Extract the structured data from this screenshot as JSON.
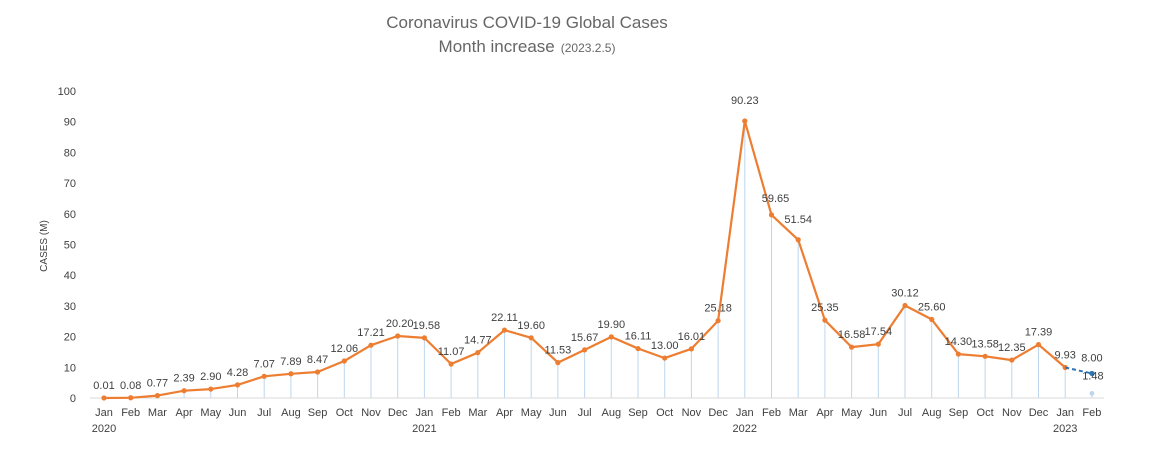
{
  "chart_data": {
    "type": "line",
    "title": "Coronavirus COVID-19 Global Cases",
    "subtitle": "Month increase",
    "subtitle_note": "(2023.2.5)",
    "ylabel": "CASES  (M)",
    "xlabel": "",
    "ylim": [
      0,
      100
    ],
    "yticks": [
      "0",
      "10",
      "20",
      "30",
      "40",
      "50",
      "60",
      "70",
      "80",
      "90",
      "100"
    ],
    "grid": false,
    "drop_lines": true,
    "colors": {
      "line": "#ED7D31",
      "projection": "#2E75B6",
      "drop_line": "#BDD7EE",
      "text": "#404040",
      "title": "#666666"
    },
    "categories": [
      "Jan",
      "Feb",
      "Mar",
      "Apr",
      "May",
      "Jun",
      "Jul",
      "Aug",
      "Sep",
      "Oct",
      "Nov",
      "Dec",
      "Jan",
      "Feb",
      "Mar",
      "Apr",
      "May",
      "Jun",
      "Jul",
      "Aug",
      "Sep",
      "Oct",
      "Nov",
      "Dec",
      "Jan",
      "Feb",
      "Mar",
      "Apr",
      "May",
      "Jun",
      "Jul",
      "Aug",
      "Sep",
      "Oct",
      "Nov",
      "Dec",
      "Jan",
      "Feb"
    ],
    "year_labels": [
      {
        "index": 0,
        "label": "2020"
      },
      {
        "index": 12,
        "label": "2021"
      },
      {
        "index": 24,
        "label": "2022"
      },
      {
        "index": 36,
        "label": "2023"
      }
    ],
    "values": [
      0.01,
      0.08,
      0.77,
      2.39,
      2.9,
      4.28,
      7.07,
      7.89,
      8.47,
      12.06,
      17.21,
      20.2,
      19.58,
      11.07,
      14.77,
      22.11,
      19.6,
      11.53,
      15.67,
      19.9,
      16.11,
      13.0,
      16.01,
      25.18,
      90.23,
      59.65,
      51.54,
      25.35,
      16.58,
      17.54,
      30.12,
      25.6,
      14.3,
      13.58,
      12.35,
      17.39,
      9.93,
      1.48
    ],
    "labels": [
      "0.01",
      "0.08",
      "0.77",
      "2.39",
      "2.90",
      "4.28",
      "7.07",
      "7.89",
      "8.47",
      "12.06",
      "17.21",
      "20.20",
      "19.58",
      "11.07",
      "14.77",
      "22.11",
      "19.60",
      "11.53",
      "15.67",
      "19.90",
      "16.11",
      "13.00",
      "16.01",
      "25.18",
      "90.23",
      "59.65",
      "51.54",
      "25.35",
      "16.58",
      "17.54",
      "30.12",
      "25.60",
      "14.30",
      "13.58",
      "12.35",
      "17.39",
      "9.93",
      "1.48"
    ],
    "projection": {
      "from_index": 36,
      "to_index": 37,
      "value": 8.0,
      "label": "8.00"
    }
  }
}
